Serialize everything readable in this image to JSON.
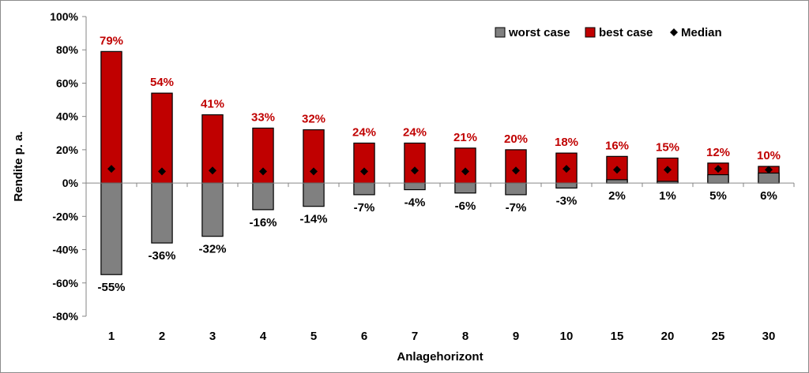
{
  "chart_data": {
    "type": "bar",
    "xlabel": "Anlagehorizont",
    "ylabel": "Rendite p. a.",
    "ylim": [
      -80,
      100
    ],
    "y_ticks": [
      "-80%",
      "-60%",
      "-40%",
      "-20%",
      "0%",
      "20%",
      "40%",
      "60%",
      "80%",
      "100%"
    ],
    "y_tick_values": [
      -80,
      -60,
      -40,
      -20,
      0,
      20,
      40,
      60,
      80,
      100
    ],
    "categories": [
      "1",
      "2",
      "3",
      "4",
      "5",
      "6",
      "7",
      "8",
      "9",
      "10",
      "15",
      "20",
      "25",
      "30"
    ],
    "legend_position": "top-right",
    "grid": false,
    "series": [
      {
        "name": "worst case",
        "color": "#808080",
        "values": [
          -55,
          -36,
          -32,
          -16,
          -14,
          -7,
          -4,
          -6,
          -7,
          -3,
          2,
          1,
          5,
          6
        ],
        "labels": [
          "-55%",
          "-36%",
          "-32%",
          "-16%",
          "-14%",
          "-7%",
          "-4%",
          "-6%",
          "-7%",
          "-3%",
          "2%",
          "1%",
          "5%",
          "6%"
        ]
      },
      {
        "name": "best case",
        "color": "#c00000",
        "values": [
          79,
          54,
          41,
          33,
          32,
          24,
          24,
          21,
          20,
          18,
          16,
          15,
          12,
          10
        ],
        "labels": [
          "79%",
          "54%",
          "41%",
          "33%",
          "32%",
          "24%",
          "24%",
          "21%",
          "20%",
          "18%",
          "16%",
          "15%",
          "12%",
          "10%"
        ]
      },
      {
        "name": "Median",
        "color": "#000000",
        "marker": "diamond",
        "values": [
          8.5,
          7,
          7.5,
          7,
          7,
          7,
          7.5,
          7,
          7.5,
          8.5,
          8,
          8,
          8.5,
          8
        ]
      }
    ]
  }
}
